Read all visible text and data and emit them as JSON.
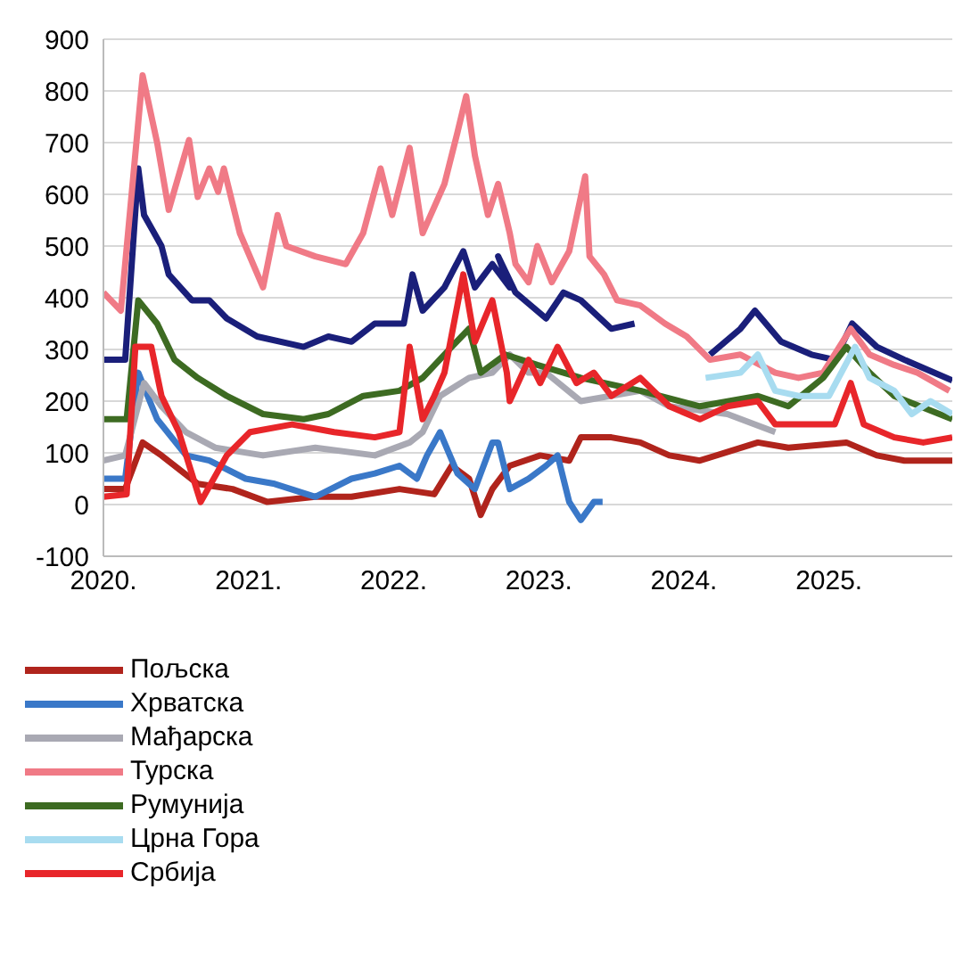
{
  "chart_data": {
    "type": "line",
    "xlim": [
      2020,
      2025.85
    ],
    "xticks": [
      {
        "value": 2020,
        "label": "2020."
      },
      {
        "value": 2021,
        "label": "2021."
      },
      {
        "value": 2022,
        "label": "2022."
      },
      {
        "value": 2023,
        "label": "2023."
      },
      {
        "value": 2024,
        "label": "2024."
      },
      {
        "value": 2025,
        "label": "2025."
      }
    ],
    "ylim": [
      -100,
      900
    ],
    "yticks": [
      -100,
      0,
      100,
      200,
      300,
      400,
      500,
      600,
      700,
      800,
      900
    ],
    "grid": "y",
    "legend": "bottom",
    "series": [
      {
        "color": "#1a1f7a",
        "x": [
          2020,
          2020.15,
          2020.24,
          2020.28,
          2020.4,
          2020.45,
          2020.61,
          2020.73,
          2020.85,
          2021.06,
          2021.38,
          2021.55,
          2021.71,
          2021.87,
          2022.07,
          2022.13,
          2022.2,
          2022.35,
          2022.48,
          2022.56,
          2022.68,
          2022.8,
          2022.72,
          2022.84,
          2023.05,
          2023.17,
          2023.29,
          2023.5,
          2023.66,
          2023.9,
          2024.18,
          2024.39,
          2024.49,
          2024.67,
          2024.88,
          2025.04,
          2025.16,
          2025.33,
          2025.52,
          2025.85
        ],
        "values": [
          280,
          280,
          650,
          560,
          500,
          445,
          395,
          395,
          360,
          325,
          305,
          325,
          315,
          350,
          350,
          445,
          375,
          420,
          490,
          420,
          465,
          420,
          480,
          410,
          360,
          410,
          395,
          340,
          350,
          null,
          290,
          340,
          375,
          315,
          290,
          280,
          350,
          305,
          280,
          240
        ]
      },
      {
        "name": "Пољска",
        "color": "#b0241c",
        "x": [
          2020,
          2020.15,
          2020.27,
          2020.4,
          2020.65,
          2020.89,
          2021.13,
          2021.46,
          2021.71,
          2022.04,
          2022.28,
          2022.4,
          2022.52,
          2022.6,
          2022.68,
          2022.8,
          2023.01,
          2023.21,
          2023.29,
          2023.5,
          2023.7,
          2023.9,
          2024.11,
          2024.51,
          2024.72,
          2025.12,
          2025.33,
          2025.52,
          2025.85
        ],
        "values": [
          30,
          30,
          120,
          95,
          40,
          30,
          5,
          15,
          15,
          30,
          20,
          75,
          50,
          -20,
          30,
          75,
          95,
          85,
          130,
          130,
          120,
          95,
          85,
          120,
          110,
          120,
          95,
          85,
          85
        ]
      },
      {
        "name": "Хрватска",
        "color": "#3a78c8",
        "x": [
          2020,
          2020.15,
          2020.24,
          2020.37,
          2020.57,
          2020.73,
          2020.98,
          2021.18,
          2021.46,
          2021.71,
          2021.87,
          2022.04,
          2022.16,
          2022.23,
          2022.32,
          2022.44,
          2022.56,
          2022.68,
          2022.72,
          2022.8,
          2022.93,
          2023.05,
          2023.13,
          2023.21,
          2023.29,
          2023.38,
          2023.44
        ],
        "values": [
          50,
          50,
          255,
          165,
          95,
          85,
          50,
          40,
          15,
          50,
          60,
          75,
          50,
          95,
          140,
          60,
          30,
          120,
          120,
          30,
          50,
          75,
          95,
          5,
          -30,
          5,
          5
        ]
      },
      {
        "name": "Мађарска",
        "color": "#a9a9b3",
        "x": [
          2020,
          2020.15,
          2020.28,
          2020.4,
          2020.57,
          2020.77,
          2021.1,
          2021.46,
          2021.87,
          2022.11,
          2022.2,
          2022.32,
          2022.52,
          2022.68,
          2022.8,
          2022.93,
          2023.05,
          2023.29,
          2023.7,
          2023.9,
          2024.3,
          2024.63
        ],
        "values": [
          85,
          95,
          235,
          190,
          140,
          110,
          95,
          110,
          95,
          120,
          140,
          210,
          245,
          255,
          290,
          255,
          255,
          200,
          220,
          190,
          175,
          140
        ]
      },
      {
        "name": "Турска",
        "color": "#f07a86",
        "x": [
          2020,
          2020.12,
          2020.27,
          2020.37,
          2020.45,
          2020.59,
          2020.65,
          2020.73,
          2020.79,
          2020.83,
          2020.94,
          2021.1,
          2021.2,
          2021.26,
          2021.46,
          2021.67,
          2021.79,
          2021.91,
          2021.99,
          2022.11,
          2022.2,
          2022.35,
          2022.44,
          2022.5,
          2022.56,
          2022.65,
          2022.72,
          2022.8,
          2022.84,
          2022.93,
          2022.99,
          2023.09,
          2023.21,
          2023.32,
          2023.35,
          2023.45,
          2023.54,
          2023.7,
          2023.87,
          2024.02,
          2024.18,
          2024.39,
          2024.63,
          2024.79,
          2024.96,
          2025.15,
          2025.28,
          2025.45,
          2025.61,
          2025.83
        ],
        "values": [
          410,
          375,
          830,
          700,
          570,
          705,
          595,
          650,
          605,
          650,
          525,
          420,
          560,
          500,
          480,
          465,
          525,
          650,
          560,
          690,
          525,
          620,
          720,
          790,
          675,
          560,
          620,
          525,
          465,
          430,
          500,
          430,
          490,
          635,
          480,
          445,
          395,
          385,
          350,
          325,
          280,
          290,
          255,
          245,
          255,
          340,
          290,
          270,
          255,
          220
        ]
      },
      {
        "name": "Румунија",
        "color": "#3d6b22",
        "x": [
          2020,
          2020.16,
          2020.24,
          2020.37,
          2020.49,
          2020.65,
          2020.85,
          2021.1,
          2021.38,
          2021.55,
          2021.79,
          2022.04,
          2022.2,
          2022.4,
          2022.52,
          2022.6,
          2022.77,
          2022.99,
          2023.29,
          2023.7,
          2024.11,
          2024.51,
          2024.72,
          2024.96,
          2025.12,
          2025.28,
          2025.45,
          2025.85
        ],
        "values": [
          165,
          165,
          395,
          350,
          280,
          245,
          210,
          175,
          165,
          175,
          210,
          220,
          245,
          305,
          340,
          255,
          290,
          270,
          245,
          220,
          190,
          210,
          190,
          245,
          305,
          255,
          210,
          165
        ]
      },
      {
        "name": "Црна Гора",
        "color": "#a8dcf0",
        "x": [
          2024.15,
          2024.39,
          2024.51,
          2024.63,
          2024.79,
          2025,
          2025.18,
          2025.28,
          2025.45,
          2025.57,
          2025.7,
          2025.85
        ],
        "values": [
          245,
          255,
          290,
          220,
          210,
          210,
          305,
          245,
          220,
          175,
          200,
          175
        ]
      },
      {
        "name": "Србија",
        "color": "#e8262a",
        "x": [
          2020,
          2020.16,
          2020.22,
          2020.33,
          2020.4,
          2020.52,
          2020.67,
          2020.85,
          2021.01,
          2021.3,
          2021.59,
          2021.87,
          2022.04,
          2022.11,
          2022.2,
          2022.28,
          2022.35,
          2022.48,
          2022.56,
          2022.68,
          2022.78,
          2022.8,
          2022.93,
          2023.01,
          2023.13,
          2023.26,
          2023.38,
          2023.5,
          2023.7,
          2023.9,
          2024.11,
          2024.3,
          2024.51,
          2024.63,
          2024.84,
          2025.04,
          2025.15,
          2025.24,
          2025.45,
          2025.65,
          2025.85
        ],
        "values": [
          15,
          20,
          305,
          305,
          210,
          140,
          5,
          95,
          140,
          155,
          140,
          130,
          140,
          305,
          165,
          210,
          255,
          445,
          315,
          395,
          255,
          200,
          280,
          235,
          305,
          235,
          255,
          210,
          245,
          190,
          165,
          190,
          200,
          155,
          155,
          155,
          235,
          155,
          130,
          120,
          130
        ]
      }
    ]
  }
}
